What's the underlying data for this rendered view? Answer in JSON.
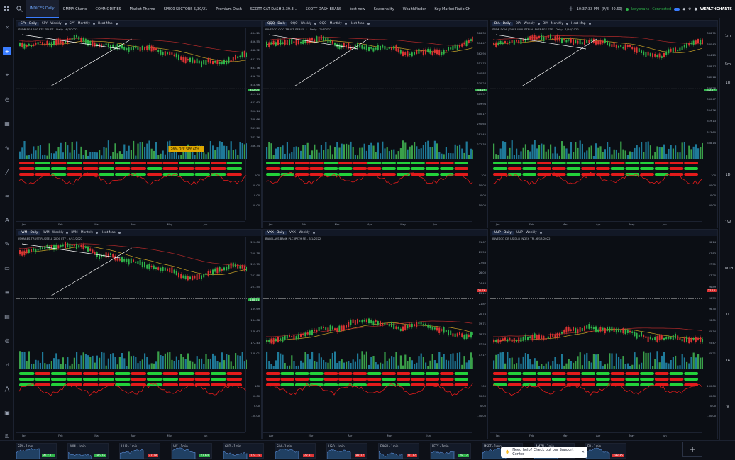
{
  "tabs": [
    "INDICES Daily",
    "GMMA Charts",
    "COMMODITIES",
    "Market Theme",
    "SP500 SECTORS 5/30/21",
    "Premium Dash",
    "SCOTT CAT DASH 3.39.3...",
    "SCOTT DASH BEARS",
    "test new",
    "Seasonality",
    "WealthFinder",
    "Key Market Ratio Ch"
  ],
  "header": {
    "time": "10:37:33 PM",
    "pl": "(P/E -40.60)",
    "user": "ladyonahs",
    "status": "Connected",
    "brand": "WEALTHCHARTS",
    "add": "+"
  },
  "timeframes": [
    "1m",
    "5m",
    "1H",
    "1D",
    "1W",
    "1MTH",
    "TL",
    "TA",
    "V"
  ],
  "panels": [
    {
      "sym": "SPY - Daily",
      "tf1": "SPY - Weekly",
      "tf2": "SPY - Monthly",
      "tf3": "Heat Map",
      "desc": "SPDR S&P 500 ETF TRUST - Daily - 6/1/2022",
      "last": "412.05",
      "last_color": "#2fb44a",
      "note": "26% OFF SPY ATH",
      "prices": [
        "464.21",
        "456.55",
        "448.92",
        "441.33",
        "433.76",
        "426.20",
        "418.66",
        "411.14",
        "403.63",
        "396.14",
        "388.66",
        "381.20",
        "373.76",
        "366.34"
      ],
      "osc": [
        "100",
        "50.00",
        "0.00",
        "-50.00"
      ],
      "months": [
        "Jan",
        "Feb",
        "Mar",
        "Apr",
        "May",
        "Jun"
      ],
      "trend": "down"
    },
    {
      "sym": "QQQ - Daily",
      "tf1": "QQQ - Weekly",
      "tf2": "QQQ - Monthly",
      "tf3": "Heat Map",
      "desc": "INVESCO QQQ TRUST SERIES 1 - Daily - 2/4/2022",
      "last": "314.29",
      "last_color": "#2fb44a",
      "note": "",
      "prices": [
        "386.30",
        "374.47",
        "362.95",
        "351.76",
        "340.87",
        "330.28",
        "319.97",
        "309.94",
        "300.17",
        "290.66",
        "281.40",
        "272.38"
      ],
      "osc": [
        "100",
        "50.00",
        "0.00",
        "-50.00"
      ],
      "months": [
        "Jan",
        "Feb",
        "Mar",
        "Apr",
        "May",
        "Jun"
      ],
      "trend": "down"
    },
    {
      "sym": "DIA - Daily",
      "tf1": "DIA - Weekly",
      "tf2": "DIA - Monthly",
      "tf3": "Heat Map",
      "desc": "SPDR DOW JONES INDUSTRIAL AVERAGE ETF - Daily - 1/26/2022",
      "last": "332.77",
      "last_color": "#2fb44a",
      "note": "",
      "prices": [
        "366.71",
        "360.43",
        "354.25",
        "348.17",
        "342.18",
        "336.28",
        "330.47",
        "324.76",
        "319.13",
        "313.60",
        "308.14"
      ],
      "osc": [
        "100",
        "50.00",
        "0.00",
        "-50.00"
      ],
      "months": [
        "Jan",
        "Feb",
        "Mar",
        "Apr",
        "May",
        "Jun"
      ],
      "trend": "down"
    },
    {
      "sym": "IWM - Daily",
      "tf1": "IWM - Weekly",
      "tf2": "IWM - Monthly",
      "tf3": "Heat Map",
      "desc": "ISHARES TRUST RUSSELL 2000 ETF - 6/13/2022",
      "last": "188.76",
      "last_color": "#2fb44a",
      "note": "",
      "prices": [
        "226.06",
        "220.38",
        "213.75",
        "207.88",
        "201.55",
        "195.50",
        "189.69",
        "184.08",
        "178.67",
        "172.43",
        "168.01"
      ],
      "osc": [
        "100",
        "50.00",
        "0.00",
        "-50.00"
      ],
      "months": [
        "Jan",
        "Feb",
        "Mar",
        "Apr",
        "May",
        "Jun"
      ],
      "trend": "down"
    },
    {
      "sym": "VXX - Daily",
      "tf1": "VXX - Weekly",
      "tf2": "",
      "tf3": "",
      "desc": "BARCLAYS BANK PLC IPATH SE - 6/1/2022",
      "last": "21.76",
      "last_color": "#d33",
      "note": "",
      "prices": [
        "31.67",
        "29.56",
        "27.68",
        "26.00",
        "24.48",
        "23.11",
        "21.87",
        "20.74",
        "19.71",
        "18.78",
        "17.94",
        "17.17"
      ],
      "osc": [
        "100",
        "50.00",
        "0.00",
        "-50.00"
      ],
      "months": [
        "Apr",
        "Mar",
        "Apr",
        "May",
        "Jun"
      ],
      "trend": "up"
    },
    {
      "sym": "UUP - Daily",
      "tf1": "UUP - Weekly",
      "tf2": "",
      "tf3": "",
      "desc": "INVESCO DB US DLR INDEX TR - 6/13/2022",
      "last": "27.18",
      "last_color": "#d33",
      "note": "",
      "prices": [
        "28.14",
        "27.83",
        "27.51",
        "27.20",
        "26.89",
        "26.59",
        "26.30",
        "26.01",
        "25.74",
        "25.47",
        "25.21"
      ],
      "osc": [
        "100.00",
        "50.00",
        "0.00",
        "-50.00"
      ],
      "months": [
        "Jan",
        "Feb",
        "Mar",
        "Apr",
        "May",
        "Jun"
      ],
      "trend": "up"
    }
  ],
  "tickers": [
    {
      "name": "SPY - 1min",
      "value": "412.71",
      "color": "#2fb44a"
    },
    {
      "name": "IWM - 1min",
      "value": "186.76",
      "color": "#2fb44a"
    },
    {
      "name": "UUP - 1min",
      "value": "27.18",
      "color": "#d33"
    },
    {
      "name": "VIX - 1min",
      "value": "21.60",
      "color": "#2fb44a"
    },
    {
      "name": "GLD - 1min",
      "value": "174.29",
      "color": "#d33"
    },
    {
      "name": "SLV - 1min",
      "value": "22.81",
      "color": "#d33"
    },
    {
      "name": "USO - 1min",
      "value": "87.27",
      "color": "#d33"
    },
    {
      "name": "FNGU - 1min",
      "value": "10.77",
      "color": "#d33"
    },
    {
      "name": "FFTY - 1min",
      "value": "28.17",
      "color": "#2fb44a"
    },
    {
      "name": "MSFT - 1min",
      "value": "274.58",
      "color": "#2fb44a"
    },
    {
      "name": "AMZN - 1min",
      "value": "119.88",
      "color": "#d33"
    },
    {
      "name": "FB - 1min",
      "value": "198.35",
      "color": "#d33"
    }
  ],
  "help": {
    "text": "Need help? Check out our Support Center",
    "close": "✕"
  },
  "colors": {
    "up": "#2fb44a",
    "down": "#d33",
    "vol": "#2a8fa8",
    "ma1": "#c9a227",
    "ma2": "#b02a2a"
  }
}
